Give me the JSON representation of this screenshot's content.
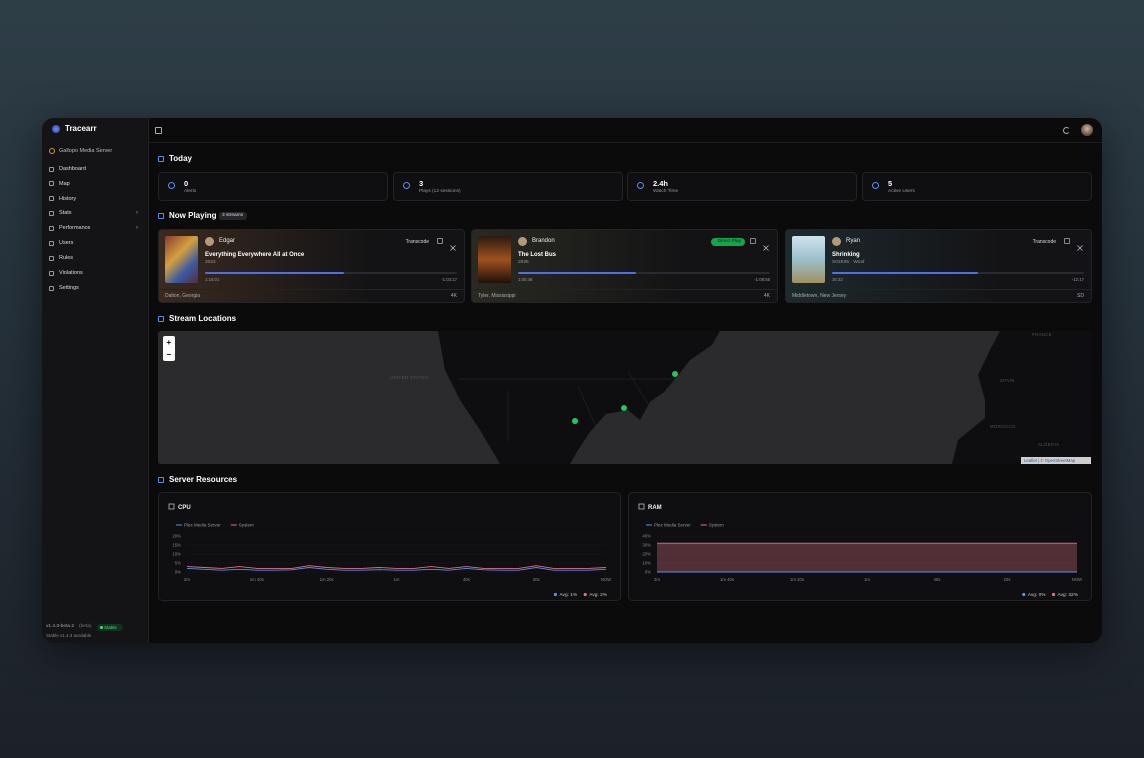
{
  "sidebar": {
    "brand": "Tracearr",
    "server": "Gallopo Media Server",
    "nav": [
      "Dashboard",
      "Map",
      "History",
      "Stats",
      "Performance",
      "Users",
      "Rules",
      "Violations",
      "Settings"
    ],
    "version": "v1.4.3-beta.2",
    "channel": "(beta)",
    "status": "Stable",
    "update": "Stable v1.4.3 available"
  },
  "today": {
    "title": "Today",
    "stats": [
      {
        "value": "0",
        "label": "Alerts"
      },
      {
        "value": "3",
        "label": "Plays (12 sessions)"
      },
      {
        "value": "2.4h",
        "label": "Watch Time"
      },
      {
        "value": "5",
        "label": "Active Users"
      }
    ]
  },
  "now_playing": {
    "title": "Now Playing",
    "badge": "3 streams",
    "streams": [
      {
        "user": "Edgar",
        "title": "Everything Everywhere All at Once",
        "subtitle": "2022",
        "mode": "Transcode",
        "elapsed": "1:16:01",
        "remaining": "-1:03:17",
        "location": "Dalton, Georgia",
        "quality": "4K",
        "progress": 55
      },
      {
        "user": "Brandon",
        "title": "The Lost Bus",
        "subtitle": "2025",
        "mode": "Direct Play",
        "elapsed": "1:00:48",
        "remaining": "-1:08:56",
        "location": "Tyler, Mississippi",
        "quality": "4K",
        "progress": 47
      },
      {
        "user": "Ryan",
        "title": "Shrinking",
        "subtitle": "S01E05 · Woof",
        "mode": "Transcode",
        "elapsed": "16:32",
        "remaining": "-12:17",
        "location": "Middletown, New Jersey",
        "quality": "SD",
        "progress": 58
      }
    ]
  },
  "map": {
    "title": "Stream Locations",
    "labels": [
      "UNITED STATES",
      "FRANCE",
      "SPAIN",
      "MOROCCO",
      "ALGERIA"
    ],
    "zoom_in": "+",
    "zoom_out": "−",
    "attribution": "Leaflet | © OpenStreetMap"
  },
  "resources": {
    "title": "Server Resources"
  },
  "chart_data": [
    {
      "type": "line",
      "title": "CPU",
      "x": [
        -120,
        -115,
        -110,
        -105,
        -100,
        -95,
        -90,
        -85,
        -80,
        -75,
        -70,
        -65,
        -60,
        -55,
        -50,
        -45,
        -40,
        -35,
        -30,
        -25,
        -20,
        -15,
        -10,
        -5,
        0
      ],
      "xlim": [
        -120,
        0
      ],
      "xticks": [
        {
          "value": -120,
          "label": "2m"
        },
        {
          "value": -100,
          "label": "1m 40s"
        },
        {
          "value": -80,
          "label": "1m 20s"
        },
        {
          "value": -60,
          "label": "1m"
        },
        {
          "value": -40,
          "label": "40s"
        },
        {
          "value": -20,
          "label": "20s"
        },
        {
          "value": 0,
          "label": "NOW"
        }
      ],
      "ylim": [
        0,
        20
      ],
      "yticks": [
        {
          "value": 0,
          "label": "0%"
        },
        {
          "value": 5,
          "label": "5%"
        },
        {
          "value": 10,
          "label": "10%"
        },
        {
          "value": 15,
          "label": "15%"
        },
        {
          "value": 20,
          "label": "20%"
        }
      ],
      "grid": true,
      "series": [
        {
          "name": "Plex Media Server",
          "color": "#5b8def",
          "values": [
            2,
            1.5,
            1,
            1.5,
            1,
            1,
            1.2,
            2.5,
            1.5,
            1,
            1,
            1.3,
            1,
            1,
            1.5,
            1,
            2,
            1.2,
            1,
            1,
            2.5,
            1,
            1,
            1,
            1.5
          ],
          "avg": 1,
          "avg_label": "Avg: 1%"
        },
        {
          "name": "System",
          "color": "#e0708a",
          "values": [
            3,
            2.5,
            2,
            3,
            2,
            2,
            2,
            3.5,
            2.5,
            2,
            2,
            2.5,
            2,
            2,
            3,
            2,
            3,
            2,
            2,
            2,
            3.5,
            2,
            2,
            2,
            2.5
          ],
          "avg": 2,
          "avg_label": "Avg: 2%"
        }
      ]
    },
    {
      "type": "area",
      "title": "RAM",
      "x": [
        -120,
        -115,
        -110,
        -105,
        -100,
        -95,
        -90,
        -85,
        -80,
        -75,
        -70,
        -65,
        -60,
        -55,
        -50,
        -45,
        -40,
        -35,
        -30,
        -25,
        -20,
        -15,
        -10,
        -5,
        0
      ],
      "xlim": [
        -120,
        0
      ],
      "xticks": [
        {
          "value": -120,
          "label": "2m"
        },
        {
          "value": -100,
          "label": "1m 40s"
        },
        {
          "value": -80,
          "label": "1m 20s"
        },
        {
          "value": -60,
          "label": "1m"
        },
        {
          "value": -40,
          "label": "40s"
        },
        {
          "value": -20,
          "label": "20s"
        },
        {
          "value": 0,
          "label": "NOW"
        }
      ],
      "ylim": [
        0,
        40
      ],
      "yticks": [
        {
          "value": 0,
          "label": "0%"
        },
        {
          "value": 10,
          "label": "10%"
        },
        {
          "value": 20,
          "label": "20%"
        },
        {
          "value": 30,
          "label": "30%"
        },
        {
          "value": 40,
          "label": "40%"
        }
      ],
      "grid": true,
      "series": [
        {
          "name": "Plex Media Server",
          "color": "#5b8def",
          "values": [
            0,
            0,
            0,
            0,
            0,
            0,
            0,
            0,
            0,
            0,
            0,
            0,
            0,
            0,
            0,
            0,
            0,
            0,
            0,
            0,
            0,
            0,
            0,
            0,
            0
          ],
          "avg": 0,
          "avg_label": "Avg: 0%"
        },
        {
          "name": "System",
          "color": "#e0708a",
          "values": [
            32,
            32,
            32,
            32,
            32,
            32,
            32,
            32,
            32,
            32,
            32,
            32,
            32,
            32,
            32,
            32,
            32,
            32,
            32,
            32,
            32,
            32,
            32,
            32,
            32
          ],
          "avg": 32,
          "avg_label": "Avg: 32%"
        }
      ]
    }
  ]
}
